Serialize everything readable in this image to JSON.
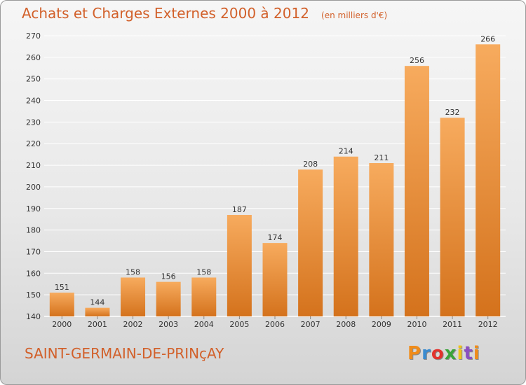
{
  "header": {
    "title": "Achats et Charges Externes 2000 à 2012",
    "unit": "(en milliers d'€)"
  },
  "footer": {
    "commune": "SAINT-GERMAIN-DE-PRINçAY",
    "brand": "Proxiti",
    "brand_colors": [
      "#f08c1a",
      "#3a8bd0",
      "#e2322d",
      "#3aa43a",
      "#f0c419",
      "#8a4fc2",
      "#f08c1a"
    ]
  },
  "colors": {
    "bar_light": "#f7ab5e",
    "bar_dark": "#d4721c",
    "grid": "#ffffff",
    "title": "#d2602a"
  },
  "chart_data": {
    "type": "bar",
    "title": "Achats et Charges Externes 2000 à 2012",
    "subtitle": "(en milliers d'€)",
    "xlabel": "",
    "ylabel": "",
    "categories": [
      "2000",
      "2001",
      "2002",
      "2003",
      "2004",
      "2005",
      "2006",
      "2007",
      "2008",
      "2009",
      "2010",
      "2011",
      "2012"
    ],
    "values": [
      151,
      144,
      158,
      156,
      158,
      187,
      174,
      208,
      214,
      211,
      256,
      232,
      266
    ],
    "ylim": [
      140,
      270
    ],
    "yticks": [
      140,
      150,
      160,
      170,
      180,
      190,
      200,
      210,
      220,
      230,
      240,
      250,
      260,
      270
    ],
    "grid": true,
    "legend": "none"
  }
}
